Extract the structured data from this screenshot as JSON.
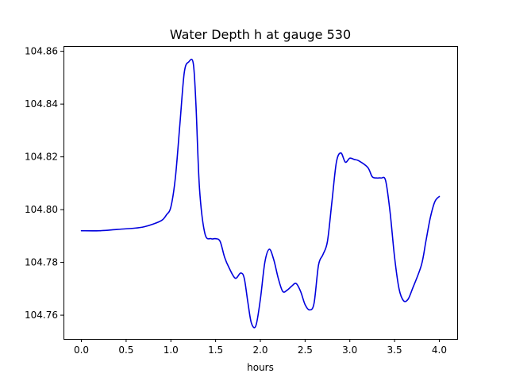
{
  "chart_data": {
    "type": "line",
    "title": "Water Depth h at gauge 530",
    "xlabel": "hours",
    "ylabel": "",
    "xlim": [
      -0.2,
      4.2
    ],
    "ylim": [
      104.751,
      104.862
    ],
    "xticks": [
      0.0,
      0.5,
      1.0,
      1.5,
      2.0,
      2.5,
      3.0,
      3.5,
      4.0
    ],
    "xtick_labels": [
      "0.0",
      "0.5",
      "1.0",
      "1.5",
      "2.0",
      "2.5",
      "3.0",
      "3.5",
      "4.0"
    ],
    "yticks": [
      104.76,
      104.78,
      104.8,
      104.82,
      104.84,
      104.86
    ],
    "ytick_labels": [
      "104.76",
      "104.78",
      "104.80",
      "104.82",
      "104.84",
      "104.86"
    ],
    "grid": false,
    "series": [
      {
        "color": "#0000dd",
        "x": [
          0.0,
          0.2,
          0.4,
          0.6,
          0.7,
          0.8,
          0.9,
          0.95,
          1.0,
          1.05,
          1.1,
          1.15,
          1.2,
          1.25,
          1.28,
          1.32,
          1.38,
          1.45,
          1.5,
          1.55,
          1.6,
          1.65,
          1.72,
          1.78,
          1.82,
          1.86,
          1.9,
          1.95,
          2.0,
          2.05,
          2.1,
          2.15,
          2.2,
          2.25,
          2.3,
          2.35,
          2.4,
          2.45,
          2.5,
          2.55,
          2.6,
          2.65,
          2.7,
          2.75,
          2.8,
          2.85,
          2.9,
          2.95,
          3.0,
          3.05,
          3.1,
          3.2,
          3.25,
          3.3,
          3.35,
          3.4,
          3.45,
          3.5,
          3.55,
          3.6,
          3.65,
          3.7,
          3.8,
          3.85,
          3.9,
          3.95,
          4.0
        ],
        "y": [
          104.792,
          104.792,
          104.7925,
          104.793,
          104.7935,
          104.7945,
          104.796,
          104.798,
          104.801,
          104.812,
          104.832,
          104.852,
          104.856,
          104.8555,
          104.84,
          104.808,
          104.791,
          104.789,
          104.789,
          104.788,
          104.782,
          104.778,
          104.774,
          104.776,
          104.774,
          104.765,
          104.757,
          104.756,
          104.766,
          104.78,
          104.785,
          104.781,
          104.774,
          104.769,
          104.7695,
          104.771,
          104.772,
          104.769,
          104.764,
          104.762,
          104.7645,
          104.779,
          104.783,
          104.788,
          104.803,
          104.818,
          104.8215,
          104.818,
          104.8195,
          104.819,
          104.8185,
          104.816,
          104.8125,
          104.812,
          104.812,
          104.811,
          104.799,
          104.782,
          104.77,
          104.7655,
          104.766,
          104.77,
          104.779,
          104.788,
          104.797,
          104.803,
          104.805
        ]
      }
    ]
  }
}
